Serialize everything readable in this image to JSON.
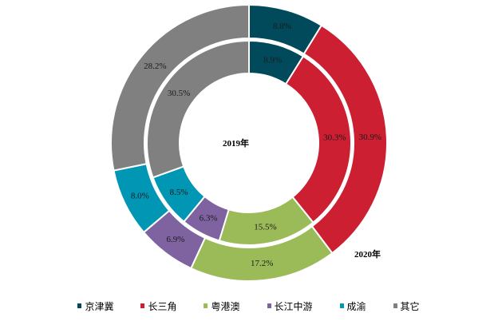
{
  "chart_data": {
    "type": "pie",
    "subtype": "nested-donut",
    "title": "",
    "center_label": "2019年",
    "outer_label": "2020年",
    "categories": [
      "京津冀",
      "长三角",
      "粤港澳",
      "长江中游",
      "成渝",
      "其它"
    ],
    "colors": [
      "#004A5B",
      "#CC1F32",
      "#9BBB59",
      "#7E63A0",
      "#0096B4",
      "#808080"
    ],
    "series": [
      {
        "name": "2019年",
        "ring": "inner",
        "values": [
          8.9,
          30.3,
          15.5,
          6.3,
          8.5,
          30.5
        ],
        "labels": [
          "8.9%",
          "30.3%",
          "15.5%",
          "6.3%",
          "8.5%",
          "30.5%"
        ]
      },
      {
        "name": "2020年",
        "ring": "outer",
        "values": [
          8.8,
          30.9,
          17.2,
          6.9,
          8.0,
          28.2
        ],
        "labels": [
          "8.8%",
          "30.9%",
          "17.2%",
          "6.9%",
          "8.0%",
          "28.2%"
        ]
      }
    ],
    "legend_position": "bottom",
    "unit": "%"
  },
  "legend": {
    "items": [
      {
        "label": "京津冀",
        "color": "#004A5B"
      },
      {
        "label": "长三角",
        "color": "#CC1F32"
      },
      {
        "label": "粤港澳",
        "color": "#9BBB59"
      },
      {
        "label": "长江中游",
        "color": "#7E63A0"
      },
      {
        "label": "成渝",
        "color": "#0096B4"
      },
      {
        "label": "其它",
        "color": "#808080"
      }
    ]
  }
}
